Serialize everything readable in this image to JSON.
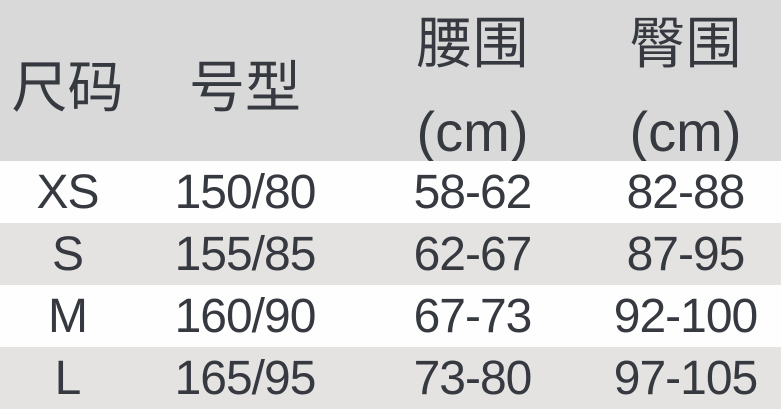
{
  "colors": {
    "header_bg": "#d9d9d9",
    "row_bg": "#fefefe",
    "row_alt_bg": "#e5e3e2",
    "text": "#363a40"
  },
  "table": {
    "headers": {
      "size": {
        "title": "尺码"
      },
      "model": {
        "title": "号型"
      },
      "waist": {
        "title": "腰围",
        "unit": "(cm)"
      },
      "hip": {
        "title": "臀围",
        "unit": "(cm)"
      }
    },
    "rows": [
      [
        "XS",
        "150/80",
        "58-62",
        "82-88"
      ],
      [
        "S",
        "155/85",
        "62-67",
        "87-95"
      ],
      [
        "M",
        "160/90",
        "67-73",
        "92-100"
      ],
      [
        "L",
        "165/95",
        "73-80",
        "97-105"
      ]
    ]
  }
}
